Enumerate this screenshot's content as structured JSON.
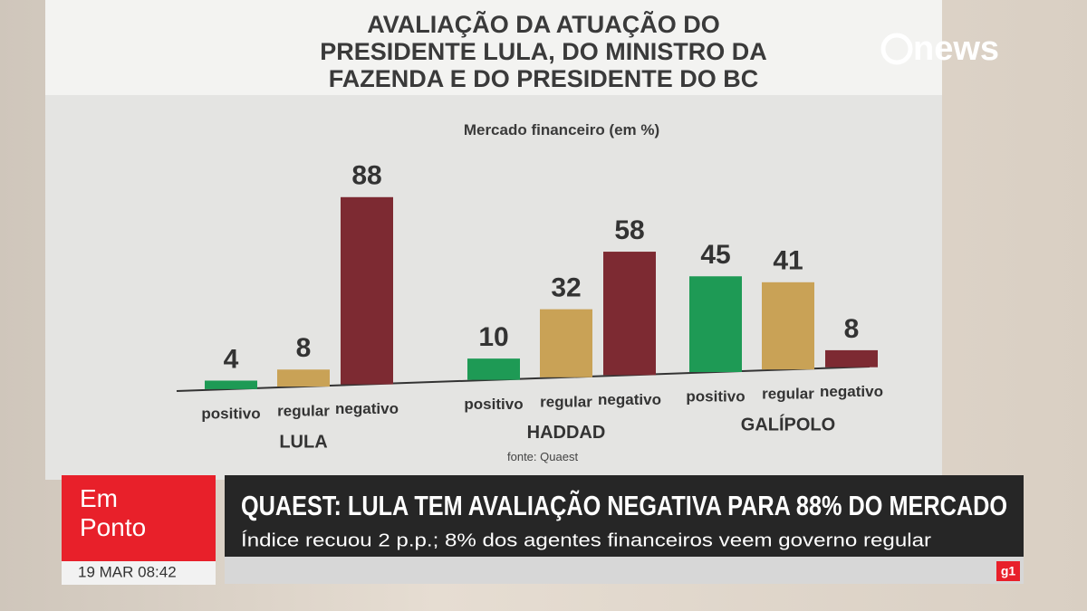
{
  "chart_data": {
    "type": "bar",
    "title": "AVALIAÇÃO DA ATUAÇÃO DO PRESIDENTE LULA, DO MINISTRO DA FAZENDA E DO PRESIDENTE DO BC",
    "subtitle": "Mercado financeiro (em %)",
    "source": "fonte: Quaest",
    "categories": [
      "LULA",
      "HADDAD",
      "GALÍPOLO"
    ],
    "series": [
      {
        "name": "positivo",
        "color": "#1e9a55",
        "values": [
          4,
          10,
          45
        ]
      },
      {
        "name": "regular",
        "color": "#c9a256",
        "values": [
          8,
          32,
          41
        ]
      },
      {
        "name": "negativo",
        "color": "#7d2a32",
        "values": [
          88,
          58,
          8
        ]
      }
    ]
  },
  "broadcast": {
    "logo": "news",
    "program": "Em Ponto",
    "datetime": "19 MAR 08:42",
    "headline": "QUAEST: LULA TEM AVALIAÇÃO NEGATIVA PARA 88% DO MERCADO",
    "subheadline": "Índice recuou 2 p.p.; 8% dos agentes financeiros veem governo regular",
    "brand": "g1"
  }
}
